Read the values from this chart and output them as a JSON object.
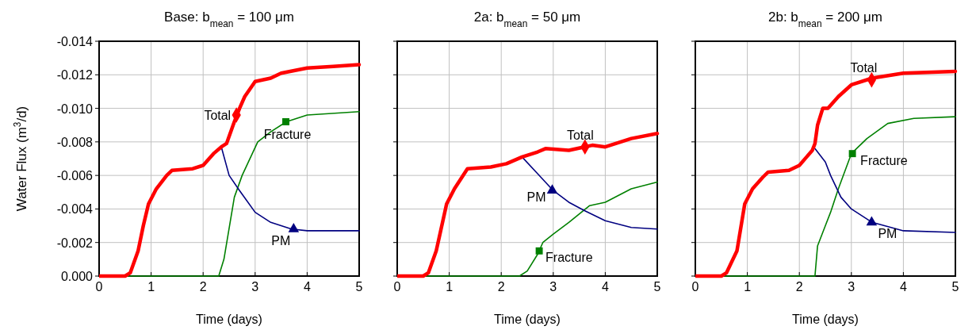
{
  "chart_data": [
    {
      "type": "line",
      "title": "Base: b$_{mean}$ = 100 μm",
      "xlabel": "Time (days)",
      "ylabel": "Water Flux (m$^{3}$/d)",
      "xlim": [
        0,
        5
      ],
      "xticks": [
        0,
        1,
        2,
        3,
        4,
        5
      ],
      "ylim": [
        0,
        -0.014
      ],
      "yticks": [
        {
          "value": 0,
          "label": "0.000"
        },
        {
          "value": -0.002,
          "label": "-0.002"
        },
        {
          "value": -0.004,
          "label": "-0.004"
        },
        {
          "value": -0.006,
          "label": "-0.006"
        },
        {
          "value": -0.008,
          "label": "-0.008"
        },
        {
          "value": -0.01,
          "label": "-0.010"
        },
        {
          "value": -0.012,
          "label": "-0.012"
        },
        {
          "value": -0.014,
          "label": "-0.014"
        }
      ],
      "grid": true,
      "series": [
        {
          "color": "#ff0000",
          "x": [
            0,
            0.5,
            0.6,
            0.75,
            0.85,
            0.95,
            1.1,
            1.3,
            1.4,
            1.8,
            2.0,
            2.2,
            2.35,
            2.45,
            2.6,
            2.7,
            2.8,
            3.0,
            3.3,
            3.5,
            4.0,
            4.5,
            5
          ],
          "values": [
            0,
            0,
            -0.0002,
            -0.0015,
            -0.003,
            -0.0043,
            -0.0052,
            -0.006,
            -0.0063,
            -0.0064,
            -0.0066,
            -0.0073,
            -0.0077,
            -0.0079,
            -0.0092,
            -0.01,
            -0.0107,
            -0.0116,
            -0.0118,
            -0.0121,
            -0.0124,
            -0.0125,
            -0.0126
          ]
        },
        {
          "color": "#000080",
          "x": [
            2.35,
            2.5,
            2.7,
            3.0,
            3.3,
            3.7,
            4.0,
            5
          ],
          "values": [
            -0.0077,
            -0.006,
            -0.0051,
            -0.0038,
            -0.0032,
            -0.0028,
            -0.0027,
            -0.0027
          ]
        },
        {
          "color": "#008000",
          "x": [
            0,
            2.3,
            2.4,
            2.6,
            2.75,
            3.05,
            3.3,
            3.6,
            4.0,
            5
          ],
          "values": [
            0,
            0,
            -0.001,
            -0.0047,
            -0.006,
            -0.008,
            -0.0086,
            -0.0092,
            -0.0096,
            -0.0098
          ]
        }
      ],
      "annotations": [
        {
          "text": "Total",
          "x": 2.64,
          "y": -0.0096
        },
        {
          "text": "PM",
          "x": 3.74,
          "y": -0.0028
        },
        {
          "text": "Fracture",
          "x": 3.59,
          "y": -0.0092
        }
      ]
    },
    {
      "type": "line",
      "title": "2a: b$_{mean}$ = 50 μm",
      "xlabel": "Time (days)",
      "xlim": [
        0,
        5
      ],
      "xticks": [
        0,
        1,
        2,
        3,
        4,
        5
      ],
      "ylim": [
        0,
        -0.014
      ],
      "yticks": [
        {
          "value": 0,
          "label": null
        },
        {
          "value": -0.002,
          "label": null
        },
        {
          "value": -0.004,
          "label": null
        },
        {
          "value": -0.006,
          "label": null
        },
        {
          "value": -0.008,
          "label": null
        },
        {
          "value": -0.01,
          "label": null
        },
        {
          "value": -0.012,
          "label": null
        },
        {
          "value": -0.014,
          "label": null
        }
      ],
      "tick_labels": "x",
      "grid": true,
      "series": [
        {
          "color": "#ff0000",
          "x": [
            0,
            0.5,
            0.6,
            0.75,
            0.95,
            1.1,
            1.35,
            1.8,
            2.1,
            2.4,
            2.7,
            2.85,
            3.3,
            3.6,
            3.75,
            4.0,
            4.5,
            5
          ],
          "values": [
            0,
            0,
            -0.0002,
            -0.0015,
            -0.0043,
            -0.0052,
            -0.0064,
            -0.0065,
            -0.0067,
            -0.0071,
            -0.0074,
            -0.0076,
            -0.0075,
            -0.0077,
            -0.0078,
            -0.0077,
            -0.0082,
            -0.0085
          ]
        },
        {
          "color": "#000080",
          "x": [
            2.4,
            2.7,
            3.0,
            3.3,
            3.6,
            4.0,
            4.5,
            5
          ],
          "values": [
            -0.0071,
            -0.0061,
            -0.0051,
            -0.0044,
            -0.0039,
            -0.0033,
            -0.0029,
            -0.0028
          ]
        },
        {
          "color": "#008000",
          "x": [
            0,
            2.35,
            2.5,
            2.7,
            2.8,
            3.0,
            3.3,
            3.7,
            4.0,
            4.5,
            5
          ],
          "values": [
            0,
            0,
            -0.0003,
            -0.0013,
            -0.002,
            -0.0025,
            -0.0032,
            -0.0042,
            -0.0044,
            -0.0052,
            -0.0056
          ]
        }
      ],
      "annotations": [
        {
          "text": "Total",
          "x": 3.61,
          "y": -0.0077
        },
        {
          "text": "PM",
          "x": 2.98,
          "y": -0.0051
        },
        {
          "text": "Fracture",
          "x": 2.73,
          "y": -0.0015
        }
      ]
    },
    {
      "type": "line",
      "title": "2b: b$_{mean}$ = 200 μm",
      "xlabel": "Time (days)",
      "xlim": [
        0,
        5
      ],
      "xticks": [
        0,
        1,
        2,
        3,
        4,
        5
      ],
      "ylim": [
        0,
        -0.014
      ],
      "yticks": [
        {
          "value": 0,
          "label": null
        },
        {
          "value": -0.002,
          "label": null
        },
        {
          "value": -0.004,
          "label": null
        },
        {
          "value": -0.006,
          "label": null
        },
        {
          "value": -0.008,
          "label": null
        },
        {
          "value": -0.01,
          "label": null
        },
        {
          "value": -0.012,
          "label": null
        },
        {
          "value": -0.014,
          "label": null
        }
      ],
      "tick_labels": "x",
      "grid": true,
      "series": [
        {
          "color": "#ff0000",
          "x": [
            0,
            0.5,
            0.6,
            0.8,
            0.95,
            1.1,
            1.3,
            1.4,
            1.8,
            2.0,
            2.25,
            2.3,
            2.35,
            2.45,
            2.55,
            2.75,
            3.0,
            3.4,
            4.0,
            5
          ],
          "values": [
            0,
            0,
            -0.0002,
            -0.0015,
            -0.0043,
            -0.0052,
            -0.0059,
            -0.0062,
            -0.0063,
            -0.0066,
            -0.0075,
            -0.0079,
            -0.009,
            -0.01,
            -0.01,
            -0.0107,
            -0.0114,
            -0.0118,
            -0.0121,
            -0.0122
          ]
        },
        {
          "color": "#000080",
          "x": [
            2.3,
            2.5,
            2.6,
            2.8,
            3.0,
            3.4,
            4.0,
            5
          ],
          "values": [
            -0.0076,
            -0.0068,
            -0.006,
            -0.0047,
            -0.004,
            -0.0032,
            -0.0027,
            -0.0026
          ]
        },
        {
          "color": "#008000",
          "x": [
            0,
            2.3,
            2.35,
            2.5,
            2.6,
            2.75,
            3.0,
            3.3,
            3.7,
            4.2,
            5
          ],
          "values": [
            0,
            0,
            -0.0018,
            -0.003,
            -0.0038,
            -0.0052,
            -0.0073,
            -0.0082,
            -0.0091,
            -0.0094,
            -0.0095
          ]
        }
      ],
      "annotations": [
        {
          "text": "Total",
          "x": 3.39,
          "y": -0.0117
        },
        {
          "text": "PM",
          "x": 3.39,
          "y": -0.0032
        },
        {
          "text": "Fracture",
          "x": 3.02,
          "y": -0.0073
        }
      ]
    }
  ]
}
